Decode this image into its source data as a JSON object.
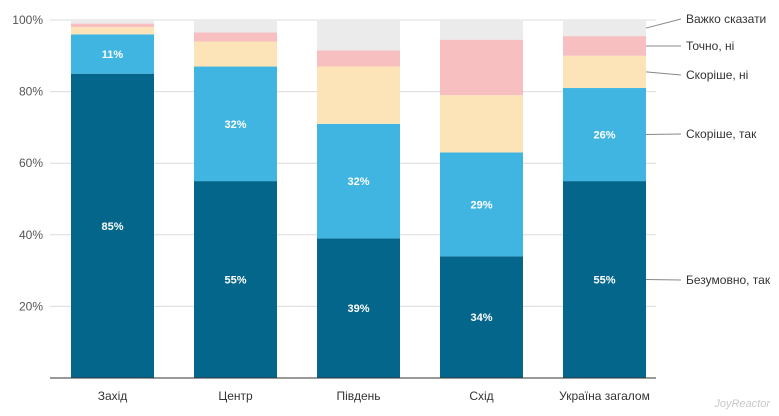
{
  "chart_data": {
    "type": "bar",
    "stacked": true,
    "normalized": true,
    "categories": [
      "Захід",
      "Центр",
      "Південь",
      "Схід",
      "Україна загалом"
    ],
    "series": [
      {
        "name": "Безумовно, так",
        "color": "#04668a",
        "values": [
          85,
          55,
          39,
          34,
          55
        ],
        "labels": [
          "85%",
          "55%",
          "39%",
          "34%",
          "55%"
        ]
      },
      {
        "name": "Скоріше, так",
        "color": "#40b5e2",
        "values": [
          11,
          32,
          32,
          29,
          26
        ],
        "labels": [
          "11%",
          "32%",
          "32%",
          "29%",
          "26%"
        ]
      },
      {
        "name": "Скоріше, ні",
        "color": "#fde3b8",
        "values": [
          2,
          7,
          16,
          16,
          9
        ],
        "labels": [
          "",
          "",
          "",
          "",
          ""
        ]
      },
      {
        "name": "Точно, ні",
        "color": "#f7bfbf",
        "values": [
          1,
          2.5,
          4.5,
          15.5,
          5.5
        ],
        "labels": [
          "",
          "",
          "",
          "",
          ""
        ]
      },
      {
        "name": "Важко сказати",
        "color": "#ebebeb",
        "values": [
          1,
          3.5,
          8.5,
          5.5,
          4.5
        ],
        "labels": [
          "",
          "",
          "",
          "",
          ""
        ]
      }
    ],
    "ylim": [
      0,
      100
    ],
    "yticks": [
      "20%",
      "40%",
      "60%",
      "80%",
      "100%"
    ],
    "grid": true,
    "legend": "right"
  },
  "watermark": "JoyReactor"
}
